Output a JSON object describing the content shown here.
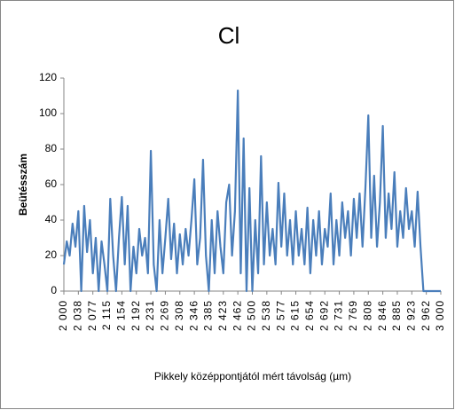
{
  "chart_data": {
    "type": "line",
    "title": "Cl",
    "x_label": "Pikkely középpontjától mért távolság (µm)",
    "y_label": "Beütésszám",
    "categories": [
      "2 000",
      null,
      null,
      null,
      null,
      "2 038",
      null,
      null,
      null,
      null,
      "2 077",
      null,
      null,
      null,
      null,
      "2 115",
      null,
      null,
      null,
      null,
      "2 154",
      null,
      null,
      null,
      null,
      "2 192",
      null,
      null,
      null,
      null,
      "2 231",
      null,
      null,
      null,
      null,
      "2 269",
      null,
      null,
      null,
      null,
      "2 308",
      null,
      null,
      null,
      null,
      "2 346",
      null,
      null,
      null,
      null,
      "2 385",
      null,
      null,
      null,
      null,
      "2 423",
      null,
      null,
      null,
      null,
      "2 462",
      null,
      null,
      null,
      null,
      "2 500",
      null,
      null,
      null,
      null,
      "2 538",
      null,
      null,
      null,
      null,
      "2 577",
      null,
      null,
      null,
      null,
      "2 615",
      null,
      null,
      null,
      null,
      "2 654",
      null,
      null,
      null,
      null,
      "2 692",
      null,
      null,
      null,
      null,
      "2 731",
      null,
      null,
      null,
      null,
      "2 769",
      null,
      null,
      null,
      null,
      "2 808",
      null,
      null,
      null,
      null,
      "2 846",
      null,
      null,
      null,
      null,
      "2 885",
      null,
      null,
      null,
      null,
      "2 923",
      null,
      null,
      null,
      null,
      "2 962",
      null,
      null,
      null,
      null,
      "3 000"
    ],
    "values": [
      15,
      28,
      20,
      38,
      25,
      45,
      0,
      48,
      22,
      40,
      10,
      30,
      0,
      28,
      15,
      0,
      52,
      20,
      0,
      30,
      53,
      15,
      48,
      0,
      25,
      10,
      35,
      20,
      30,
      10,
      79,
      15,
      0,
      40,
      10,
      30,
      52,
      18,
      38,
      10,
      32,
      15,
      35,
      20,
      40,
      63,
      15,
      30,
      74,
      20,
      0,
      40,
      10,
      45,
      25,
      10,
      50,
      60,
      20,
      45,
      113,
      10,
      86,
      0,
      58,
      0,
      40,
      10,
      76,
      15,
      50,
      20,
      35,
      15,
      61,
      25,
      55,
      20,
      40,
      15,
      45,
      20,
      35,
      15,
      47,
      10,
      40,
      20,
      45,
      15,
      35,
      25,
      55,
      15,
      40,
      20,
      50,
      30,
      45,
      20,
      52,
      30,
      55,
      25,
      58,
      99,
      30,
      65,
      25,
      50,
      93,
      30,
      55,
      35,
      67,
      25,
      45,
      30,
      58,
      35,
      45,
      25,
      56,
      25,
      0,
      0,
      0,
      0,
      0,
      0,
      0
    ],
    "color": "#4a7ebb",
    "ylim": [
      0,
      120
    ],
    "yticks": [
      0,
      20,
      40,
      60,
      80,
      100,
      120
    ],
    "grid": false
  }
}
